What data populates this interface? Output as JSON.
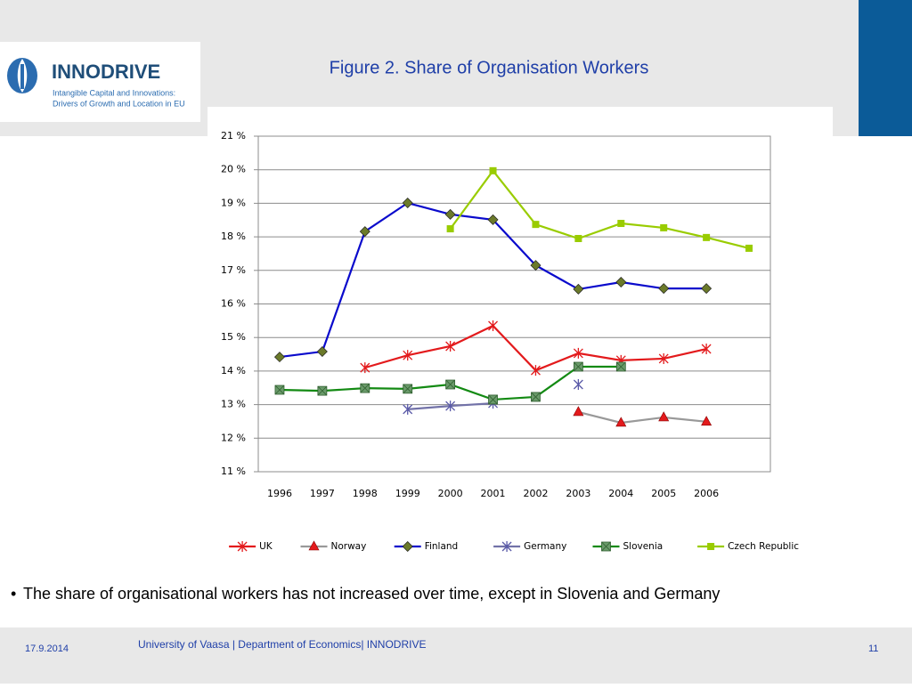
{
  "slide": {
    "logo_name": "INNODRIVE",
    "logo_tagline_1": "Intangible Capital and Innovations:",
    "logo_tagline_2": "Drivers of Growth and Location in EU",
    "bullet": "The share of organisational workers has not increased over time, except in Slovenia and Germany",
    "date": "17.9.2014",
    "footer": "University of Vaasa | Department of Economics| INNODRIVE",
    "page": "11"
  },
  "chart_data": {
    "type": "line",
    "title": "Figure 2. Share of Organisation Workers",
    "categories": [
      "1996",
      "1997",
      "1998",
      "1999",
      "2000",
      "2001",
      "2002",
      "2003",
      "2004",
      "2005",
      "2006",
      null
    ],
    "ylim": [
      11,
      21
    ],
    "yticks": [
      {
        "value": 11,
        "label": "11 %"
      },
      {
        "value": 12,
        "label": "12 %"
      },
      {
        "value": 13,
        "label": "13 %"
      },
      {
        "value": 14,
        "label": "14 %"
      },
      {
        "value": 15,
        "label": "15 %"
      },
      {
        "value": 16,
        "label": "16 %"
      },
      {
        "value": 17,
        "label": "17 %"
      },
      {
        "value": 18,
        "label": "18 %"
      },
      {
        "value": 19,
        "label": "19 %"
      },
      {
        "value": 20,
        "label": "20 %"
      },
      {
        "value": 21,
        "label": "21 %"
      }
    ],
    "grid": true,
    "legend": "bottom",
    "series": [
      {
        "name": "UK",
        "color": "#e31a1c",
        "marker": "x",
        "marker_color": "#e31a1c",
        "values": [
          null,
          null,
          14.1,
          14.47,
          14.74,
          15.35,
          14.02,
          14.53,
          14.32,
          14.37,
          14.66,
          null
        ]
      },
      {
        "name": "Norway",
        "color": "#999999",
        "marker": "triangle",
        "marker_color": "#e31a1c",
        "values": [
          null,
          null,
          null,
          null,
          null,
          null,
          null,
          12.78,
          12.46,
          12.62,
          12.49,
          null
        ]
      },
      {
        "name": "Finland",
        "color": "#0a0acc",
        "marker": "diamond",
        "marker_color": "#6b7a2a",
        "values": [
          14.42,
          14.58,
          18.16,
          19.01,
          18.67,
          18.51,
          17.15,
          16.44,
          16.65,
          16.46,
          16.46,
          null
        ]
      },
      {
        "name": "Germany",
        "color": "#7272a8",
        "marker": "x",
        "marker_color": "#5a5aa8",
        "values": [
          null,
          null,
          null,
          12.86,
          12.96,
          13.04,
          null,
          13.6,
          null,
          null,
          null,
          null
        ]
      },
      {
        "name": "Slovenia",
        "color": "#138a13",
        "marker": "square-x",
        "marker_color": "#6a9a6a",
        "values": [
          13.44,
          13.41,
          13.49,
          13.47,
          13.6,
          13.15,
          13.23,
          14.13,
          14.13,
          null,
          null,
          null
        ]
      },
      {
        "name": "Czech Republic",
        "color": "#99cc00",
        "marker": "square",
        "marker_color": "#99cc00",
        "values": [
          null,
          null,
          null,
          null,
          18.24,
          19.97,
          18.37,
          17.95,
          18.4,
          18.27,
          17.98,
          17.66
        ]
      }
    ]
  }
}
